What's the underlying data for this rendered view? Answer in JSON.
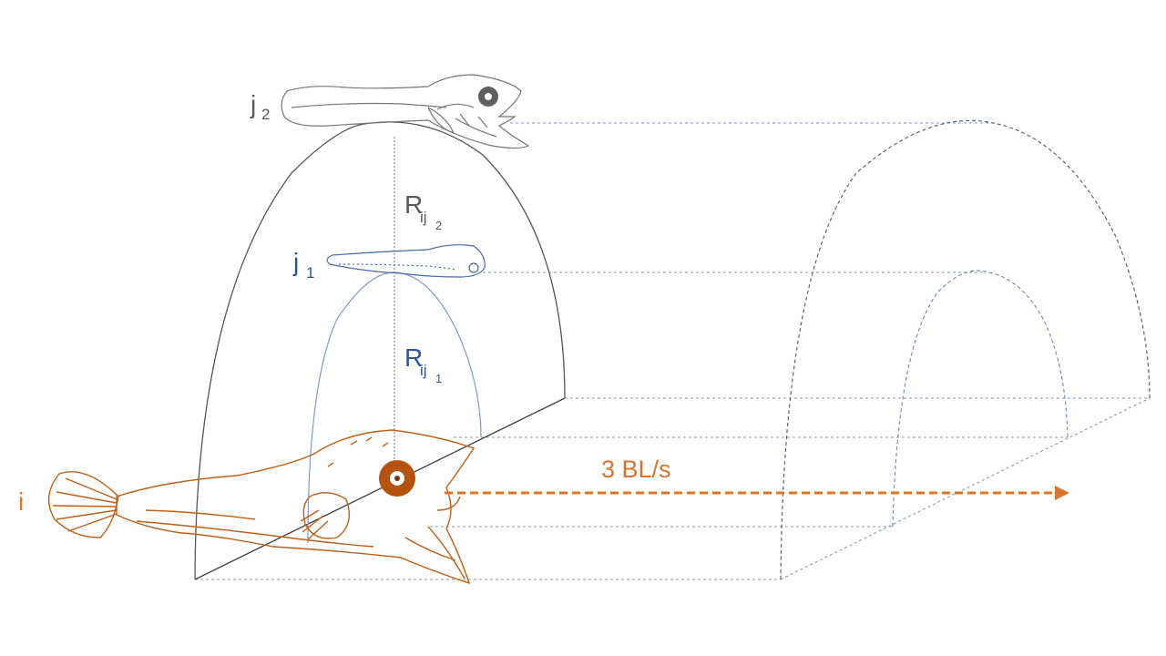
{
  "labels": {
    "focal": "i",
    "neighbor_near": "j",
    "neighbor_near_sub": "1",
    "neighbor_far": "j",
    "neighbor_far_sub": "2",
    "radius_near": "R",
    "radius_near_sub": "ij",
    "radius_near_subsub": "1",
    "radius_far": "R",
    "radius_far_sub": "ij",
    "radius_far_subsub": "2",
    "speed": "3 BL/s"
  },
  "colors": {
    "orange": "#D9752E",
    "fish_orange": "#C06018",
    "blue": "#2F5597",
    "blue_light": "#7F99C8",
    "gray": "#595959",
    "gray_light": "#8A8A8A"
  },
  "icons": {
    "focal_fish": "orange-larval-fish-illustration",
    "near_fish": "blue-small-larva-illustration",
    "far_fish": "gray-larval-fish-illustration"
  }
}
